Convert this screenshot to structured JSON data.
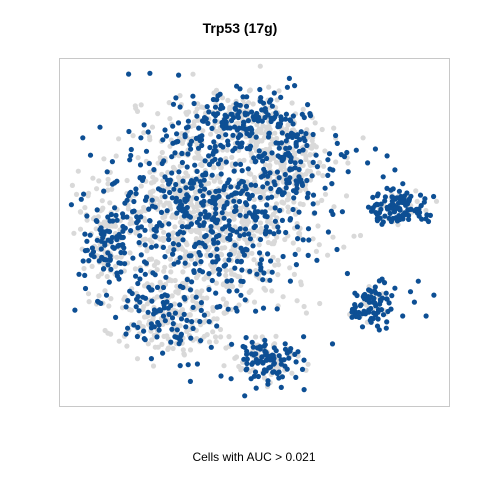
{
  "chart_data": {
    "type": "scatter",
    "title": "Trp53 (17g)",
    "caption": "Cells with AUC > 0.021",
    "xlabel": "",
    "ylabel": "",
    "axes_visible": false,
    "grid": false,
    "legend": "none",
    "series": [
      {
        "label_in_legend": false,
        "color": "#0d4f94",
        "points": [
          [
            0.9,
            0.33
          ],
          [
            0.94,
            0.26
          ],
          [
            0.8,
            0.33
          ],
          [
            0.85,
            0.28
          ],
          [
            0.92,
            0.36
          ],
          [
            0.82,
            0.22
          ],
          [
            0.91,
            0.3
          ],
          [
            0.88,
            0.26
          ],
          [
            0.96,
            0.32
          ],
          [
            0.86,
            0.34
          ],
          [
            0.79,
            0.7
          ],
          [
            0.84,
            0.72
          ],
          [
            0.83,
            0.66
          ],
          [
            0.86,
            0.68
          ],
          [
            0.81,
            0.74
          ],
          [
            0.4,
            0.86
          ],
          [
            0.47,
            0.8
          ],
          [
            0.44,
            0.84
          ],
          [
            0.52,
            0.82
          ],
          [
            0.48,
            0.89
          ],
          [
            0.05,
            0.38
          ],
          [
            0.1,
            0.3
          ],
          [
            0.13,
            0.42
          ],
          [
            0.22,
            0.38
          ],
          [
            0.28,
            0.48
          ],
          [
            0.36,
            0.52
          ],
          [
            0.48,
            0.58
          ],
          [
            0.58,
            0.5
          ],
          [
            0.66,
            0.42
          ],
          [
            0.6,
            0.62
          ],
          [
            0.25,
            0.2
          ],
          [
            0.33,
            0.12
          ],
          [
            0.44,
            0.08
          ],
          [
            0.55,
            0.1
          ],
          [
            0.7,
            0.18
          ]
        ]
      },
      {
        "label_in_legend": false,
        "color": "#d9d9d9",
        "points": [
          [
            0.2,
            0.3
          ],
          [
            0.26,
            0.35
          ],
          [
            0.34,
            0.28
          ],
          [
            0.3,
            0.42
          ],
          [
            0.42,
            0.35
          ],
          [
            0.38,
            0.45
          ],
          [
            0.18,
            0.5
          ],
          [
            0.5,
            0.3
          ],
          [
            0.56,
            0.42
          ],
          [
            0.12,
            0.52
          ],
          [
            0.24,
            0.6
          ],
          [
            0.46,
            0.65
          ],
          [
            0.62,
            0.35
          ],
          [
            0.4,
            0.2
          ],
          [
            0.52,
            0.2
          ]
        ]
      }
    ]
  }
}
